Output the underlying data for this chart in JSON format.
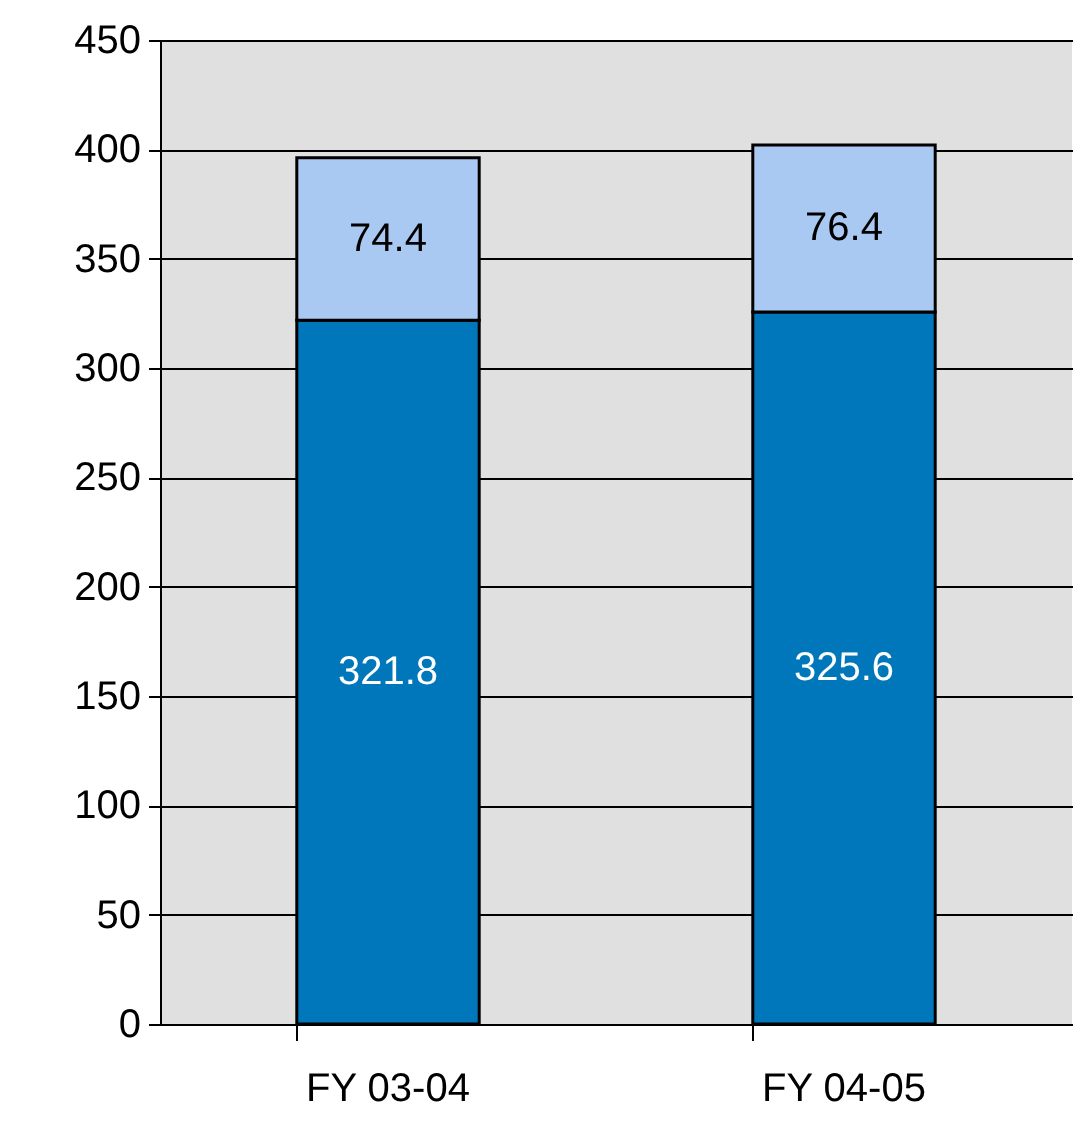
{
  "chart_data": {
    "type": "bar",
    "stacked": true,
    "categories": [
      "FY 03-04",
      "FY 04-05"
    ],
    "series": [
      {
        "color": "#0077bb",
        "values": [
          321.8,
          325.6
        ]
      },
      {
        "color": "#a9c9f2",
        "values": [
          74.4,
          76.4
        ]
      }
    ],
    "ylim": [
      0,
      450
    ],
    "yticks": [
      0,
      50,
      100,
      150,
      200,
      250,
      300,
      350,
      400,
      450
    ],
    "grid": "y",
    "data_labels": true
  }
}
